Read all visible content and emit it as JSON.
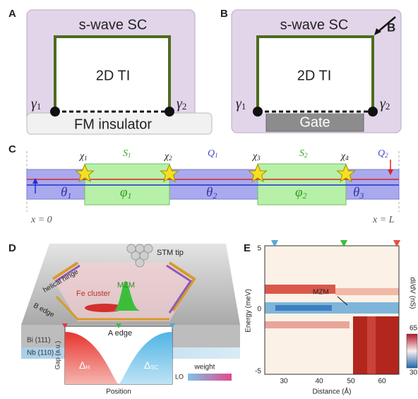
{
  "panel_a": {
    "label": "A",
    "title": "s-wave SC",
    "center": "2D TI",
    "gamma_left": {
      "base": "γ",
      "sub": "1"
    },
    "gamma_right": {
      "base": "γ",
      "sub": "2"
    },
    "bottom": "FM insulator"
  },
  "panel_b": {
    "label": "B",
    "title": "s-wave SC",
    "field": "B",
    "center": "2D TI",
    "gamma_left": {
      "base": "γ",
      "sub": "1"
    },
    "gamma_right": {
      "base": "γ",
      "sub": "2"
    },
    "bottom": "Gate"
  },
  "panel_c": {
    "label": "C",
    "top_labels": [
      {
        "base": "χ",
        "sub": "1"
      },
      {
        "base": "S",
        "sub": "1"
      },
      {
        "base": "χ",
        "sub": "2"
      },
      {
        "base": "Q",
        "sub": "1"
      },
      {
        "base": "χ",
        "sub": "3"
      },
      {
        "base": "S",
        "sub": "2"
      },
      {
        "base": "χ",
        "sub": "4"
      },
      {
        "base": "Q",
        "sub": "2"
      }
    ],
    "segment_labels": [
      {
        "base": "θ",
        "sub": "1"
      },
      {
        "base": "φ",
        "sub": "1"
      },
      {
        "base": "θ",
        "sub": "2"
      },
      {
        "base": "φ",
        "sub": "2"
      },
      {
        "base": "θ",
        "sub": "3"
      }
    ],
    "left_end": "x = 0",
    "right_end": "x = L"
  },
  "panel_d": {
    "label": "D",
    "tip": "STM tip",
    "hinge": "helical hinge",
    "cluster": "Fe cluster",
    "mzm": "MZM",
    "b_edge": "B edge",
    "a_edge": "A edge",
    "layers": [
      "Bi (111)",
      "Nb (110)"
    ],
    "inset": {
      "y_label": "Gap (a.u.)",
      "x_label": "Position",
      "left_gap": {
        "base": "Δ",
        "sub": "H"
      },
      "right_gap": {
        "base": "Δ",
        "sub": "SC"
      }
    },
    "legend": {
      "title": "weight",
      "low": "LO"
    }
  },
  "panel_e": {
    "label": "E",
    "y_label": "Energy (meV)",
    "x_label": "Distance (Å)",
    "yticks": [
      "5",
      "0",
      "-5"
    ],
    "xticks": [
      "30",
      "40",
      "50",
      "60"
    ],
    "annotation": "MZM",
    "colorbar": {
      "label": "dI/dV (nS)",
      "ticks": [
        "65",
        "30"
      ]
    }
  }
}
